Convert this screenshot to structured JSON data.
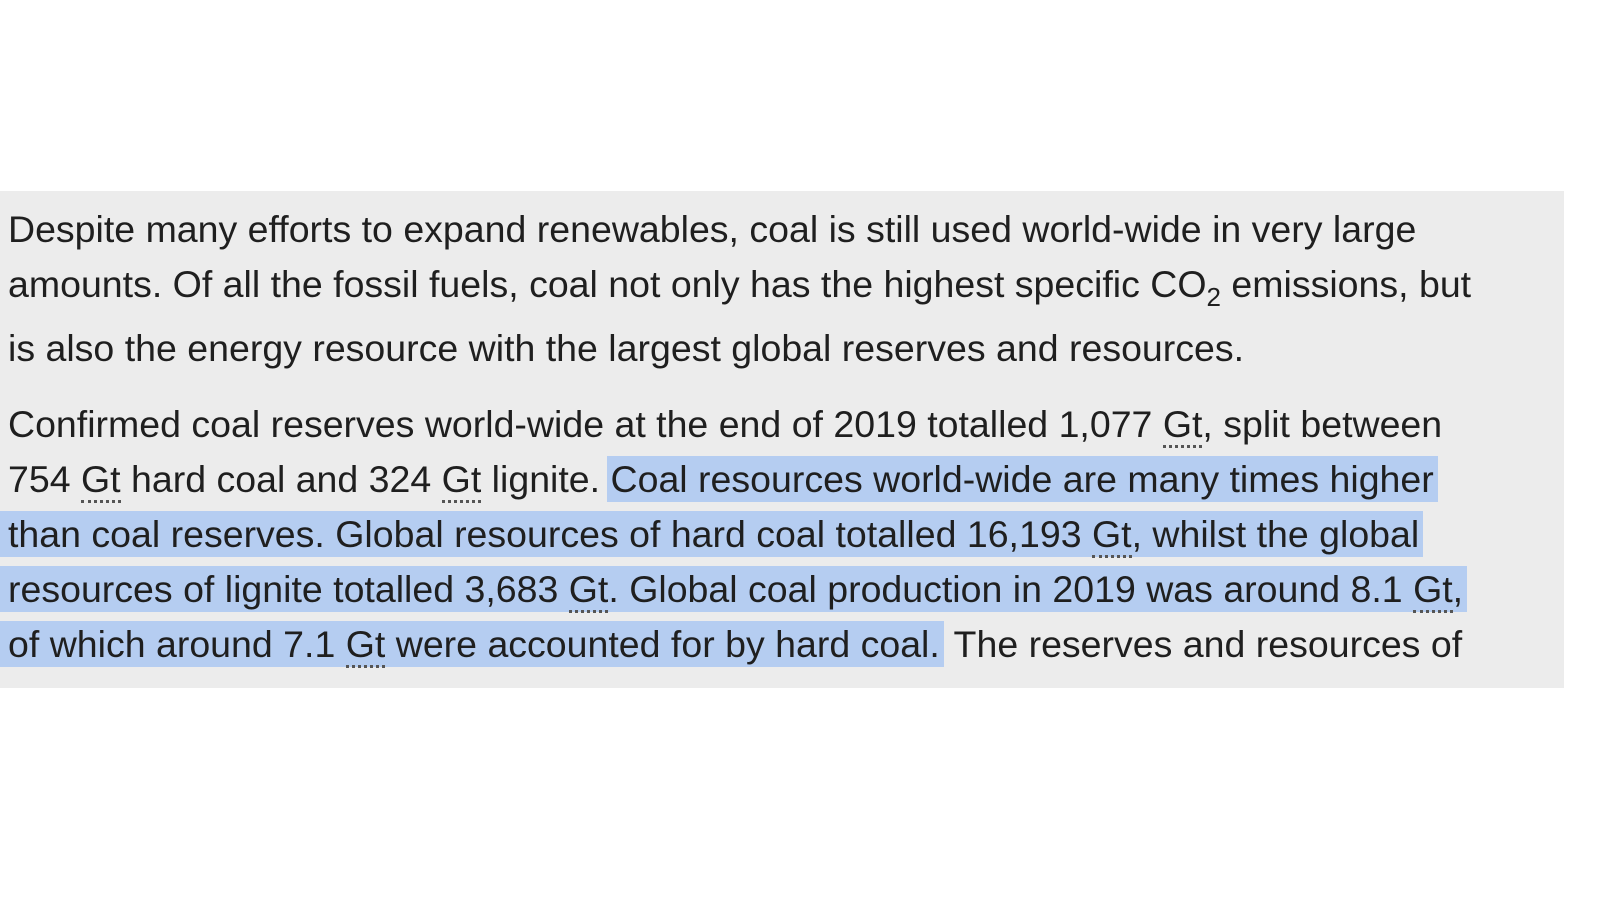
{
  "paragraph_1": {
    "line_1": "Despite many efforts to expand renewables, coal is still used world-wide in very large",
    "line_2_before": "amounts. Of all the fossil fuels, coal not only has the highest specific CO",
    "line_2_sub": "2",
    "line_2_after": " emissions, but",
    "line_3": "is also the energy resource with the largest global reserves and resources."
  },
  "paragraph_2": {
    "line_1_text": "Confirmed coal reserves world-wide at the end of 2019 totalled 1,077 ",
    "line_1_after": ", split between",
    "line_2_a": "754 ",
    "line_2_b": " hard coal and 324 ",
    "line_2_c": " lignite. ",
    "line_2_sel": "Coal resources world-wide are many times higher",
    "line_3_sel_a": "than coal reserves. Global resources of hard coal totalled 16,193 ",
    "line_3_sel_b": ", whilst the global",
    "line_4_sel_a": "resources of lignite totalled 3,683 ",
    "line_4_sel_b": ". Global coal production in 2019 was around 8.1 ",
    "line_4_sel_c": ",",
    "line_5_sel_a": "of which around 7.1 ",
    "line_5_sel_b": " were accounted for by hard coal.",
    "line_5_after": " The reserves and resources of"
  },
  "unit_abbr": "Gt",
  "selection_color": "#b5cdf1",
  "band_color": "#ececec"
}
